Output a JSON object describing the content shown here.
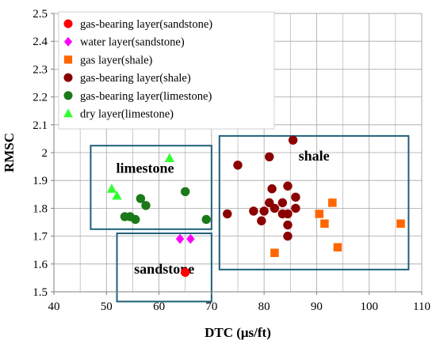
{
  "chart_data": {
    "type": "scatter",
    "xlabel": "DTC (μs/ft)",
    "ylabel": "RMSC",
    "xlim": [
      40,
      110
    ],
    "ylim": [
      1.5,
      2.5
    ],
    "xticks": [
      40,
      50,
      60,
      70,
      80,
      90,
      100,
      110
    ],
    "yticks": [
      1.5,
      1.6,
      1.7,
      1.8,
      1.9,
      2.0,
      2.1,
      2.2,
      2.3,
      2.4,
      2.5
    ],
    "x_tick_labels": [
      "40",
      "50",
      "60",
      "70",
      "80",
      "90",
      "100",
      "110"
    ],
    "y_tick_labels": [
      "1.5",
      "1.6",
      "1.7",
      "1.8",
      "1.9",
      "2",
      "2.1",
      "2.2",
      "2.3",
      "2.4",
      "2.5"
    ],
    "grid": true,
    "legend_position": "top-left",
    "series": [
      {
        "name": "gas-bearing layer(sandstone)",
        "marker": "circle",
        "color": "#ff0000",
        "points": [
          [
            65,
            1.57
          ]
        ]
      },
      {
        "name": "water layer(sandstone)",
        "marker": "diamond",
        "color": "#ff00ff",
        "points": [
          [
            64,
            1.69
          ],
          [
            66,
            1.69
          ]
        ]
      },
      {
        "name": "gas layer(shale)",
        "marker": "square",
        "color": "#ff6600",
        "points": [
          [
            82,
            1.64
          ],
          [
            90.5,
            1.78
          ],
          [
            91.5,
            1.745
          ],
          [
            93,
            1.82
          ],
          [
            94,
            1.66
          ],
          [
            106,
            1.745
          ]
        ]
      },
      {
        "name": "gas-bearing layer(shale)",
        "marker": "circle",
        "color": "#8b0000",
        "points": [
          [
            73,
            1.78
          ],
          [
            75,
            1.955
          ],
          [
            78,
            1.79
          ],
          [
            79.5,
            1.755
          ],
          [
            80,
            1.79
          ],
          [
            81,
            1.985
          ],
          [
            81,
            1.82
          ],
          [
            81.5,
            1.87
          ],
          [
            82,
            1.8
          ],
          [
            83.5,
            1.82
          ],
          [
            83.5,
            1.78
          ],
          [
            84.5,
            1.88
          ],
          [
            84.5,
            1.78
          ],
          [
            84.5,
            1.74
          ],
          [
            84.5,
            1.7
          ],
          [
            85.5,
            2.045
          ],
          [
            86,
            1.84
          ],
          [
            86,
            1.8
          ]
        ]
      },
      {
        "name": "gas-bearing layer(limestone)",
        "marker": "circle",
        "color": "#1a7a1a",
        "points": [
          [
            53.5,
            1.77
          ],
          [
            54.5,
            1.77
          ],
          [
            55.5,
            1.76
          ],
          [
            56.5,
            1.835
          ],
          [
            57.5,
            1.81
          ],
          [
            65,
            1.86
          ],
          [
            69,
            1.76
          ]
        ]
      },
      {
        "name": "dry layer(limestone)",
        "marker": "triangle",
        "color": "#33ff33",
        "points": [
          [
            51,
            1.87
          ],
          [
            52,
            1.845
          ],
          [
            62,
            1.98
          ]
        ]
      }
    ],
    "regions": [
      {
        "label": "limestone",
        "x": [
          47,
          70
        ],
        "y": [
          1.725,
          2.025
        ]
      },
      {
        "label": "sandstone",
        "x": [
          52,
          70
        ],
        "y": [
          1.465,
          1.71
        ]
      },
      {
        "label": "shale",
        "x": [
          71.5,
          107.5
        ],
        "y": [
          1.58,
          2.06
        ]
      }
    ],
    "colors": {
      "region_border": "#1f5f7a",
      "grid": "#a6a6a6",
      "axis": "#808080"
    }
  }
}
